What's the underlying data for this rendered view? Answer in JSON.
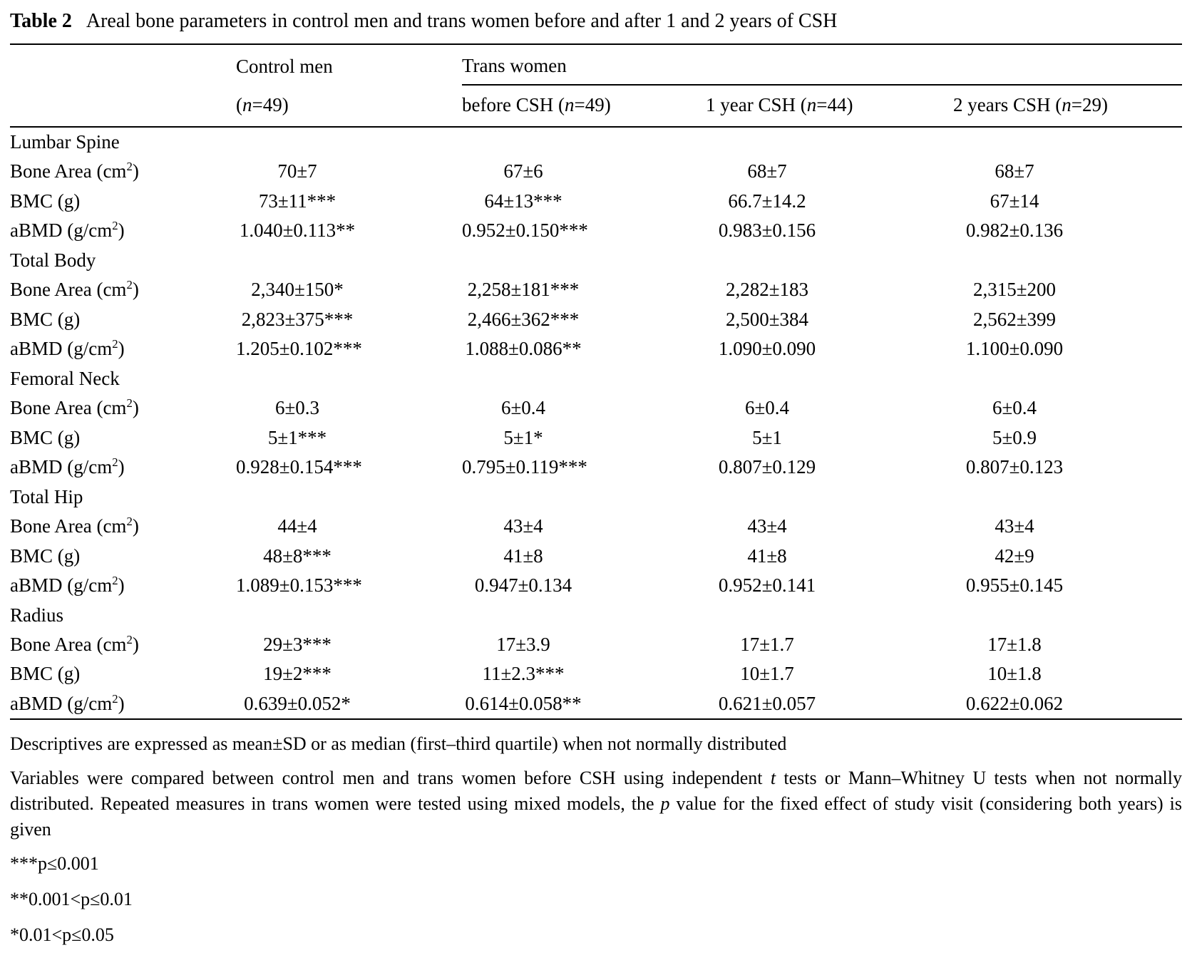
{
  "page": {
    "background": "#ffffff",
    "text_color": "#000000",
    "rule_color": "#000000"
  },
  "table": {
    "label": "Table 2",
    "caption": "Areal bone parameters in control men and trans women before and after 1 and 2 years of CSH",
    "header": {
      "control": {
        "title": "Control men",
        "sub": [
          {
            "t": "("
          },
          {
            "t": "n",
            "i": true
          },
          {
            "t": "=49)"
          }
        ]
      },
      "trans": {
        "title": "Trans women",
        "subs": [
          [
            {
              "t": "before CSH ("
            },
            {
              "t": "n",
              "i": true
            },
            {
              "t": "=49)"
            }
          ],
          [
            {
              "t": "1 year CSH ("
            },
            {
              "t": "n",
              "i": true
            },
            {
              "t": "=44)"
            }
          ],
          [
            {
              "t": "2 years CSH ("
            },
            {
              "t": "n",
              "i": true
            },
            {
              "t": "=29)"
            }
          ]
        ]
      }
    },
    "sections": [
      {
        "name": "Lumbar Spine",
        "rows": [
          {
            "label": [
              {
                "t": "Bone Area (cm"
              },
              {
                "t": "2",
                "sup": true
              },
              {
                "t": ")"
              }
            ],
            "values": [
              "70±7",
              "67±6",
              "68±7",
              "68±7"
            ]
          },
          {
            "label": [
              {
                "t": "BMC (g)"
              }
            ],
            "values": [
              "73±11***",
              "64±13***",
              "66.7±14.2",
              "67±14"
            ]
          },
          {
            "label": [
              {
                "t": "aBMD (g/cm"
              },
              {
                "t": "2",
                "sup": true
              },
              {
                "t": ")"
              }
            ],
            "values": [
              "1.040±0.113**",
              "0.952±0.150***",
              "0.983±0.156",
              "0.982±0.136"
            ]
          }
        ]
      },
      {
        "name": "Total Body",
        "rows": [
          {
            "label": [
              {
                "t": "Bone Area (cm"
              },
              {
                "t": "2",
                "sup": true
              },
              {
                "t": ")"
              }
            ],
            "values": [
              "2,340±150*",
              "2,258±181***",
              "2,282±183",
              "2,315±200"
            ]
          },
          {
            "label": [
              {
                "t": "BMC (g)"
              }
            ],
            "values": [
              "2,823±375***",
              "2,466±362***",
              "2,500±384",
              "2,562±399"
            ]
          },
          {
            "label": [
              {
                "t": "aBMD (g/cm"
              },
              {
                "t": "2",
                "sup": true
              },
              {
                "t": ")"
              }
            ],
            "values": [
              "1.205±0.102***",
              "1.088±0.086**",
              "1.090±0.090",
              "1.100±0.090"
            ]
          }
        ]
      },
      {
        "name": "Femoral Neck",
        "rows": [
          {
            "label": [
              {
                "t": "Bone Area (cm"
              },
              {
                "t": "2",
                "sup": true
              },
              {
                "t": ")"
              }
            ],
            "values": [
              "6±0.3",
              "6±0.4",
              "6±0.4",
              "6±0.4"
            ]
          },
          {
            "label": [
              {
                "t": "BMC (g)"
              }
            ],
            "values": [
              "5±1***",
              "5±1*",
              "5±1",
              "5±0.9"
            ]
          },
          {
            "label": [
              {
                "t": "aBMD (g/cm"
              },
              {
                "t": "2",
                "sup": true
              },
              {
                "t": ")"
              }
            ],
            "values": [
              "0.928±0.154***",
              "0.795±0.119***",
              "0.807±0.129",
              "0.807±0.123"
            ]
          }
        ]
      },
      {
        "name": "Total Hip",
        "rows": [
          {
            "label": [
              {
                "t": "Bone Area (cm"
              },
              {
                "t": "2",
                "sup": true
              },
              {
                "t": ")"
              }
            ],
            "values": [
              "44±4",
              "43±4",
              "43±4",
              "43±4"
            ]
          },
          {
            "label": [
              {
                "t": "BMC (g)"
              }
            ],
            "values": [
              "48±8***",
              "41±8",
              "41±8",
              "42±9"
            ]
          },
          {
            "label": [
              {
                "t": "aBMD (g/cm"
              },
              {
                "t": "2",
                "sup": true
              },
              {
                "t": ")"
              }
            ],
            "values": [
              "1.089±0.153***",
              "0.947±0.134",
              "0.952±0.141",
              "0.955±0.145"
            ]
          }
        ]
      },
      {
        "name": "Radius",
        "rows": [
          {
            "label": [
              {
                "t": "Bone Area (cm"
              },
              {
                "t": "2",
                "sup": true
              },
              {
                "t": ")"
              }
            ],
            "values": [
              "29±3***",
              "17±3.9",
              "17±1.7",
              "17±1.8"
            ]
          },
          {
            "label": [
              {
                "t": "BMC (g)"
              }
            ],
            "values": [
              "19±2***",
              "11±2.3***",
              "10±1.7",
              "10±1.8"
            ]
          },
          {
            "label": [
              {
                "t": "aBMD (g/cm"
              },
              {
                "t": "2",
                "sup": true
              },
              {
                "t": ")"
              }
            ],
            "values": [
              "0.639±0.052*",
              "0.614±0.058**",
              "0.621±0.057",
              "0.622±0.062"
            ]
          }
        ]
      }
    ]
  },
  "footnotes": {
    "fn1": [
      {
        "t": "Descriptives are expressed as mean±SD or as median (first–third quartile) when not normally distributed"
      }
    ],
    "fn2": [
      {
        "t": "Variables were compared between control men and trans women before CSH using independent "
      },
      {
        "t": "t",
        "i": true
      },
      {
        "t": " tests or Mann–Whitney U tests when not normally distributed. Repeated measures in trans women were tested using mixed models, the "
      },
      {
        "t": "p",
        "i": true
      },
      {
        "t": " value for the fixed effect of study visit (considering both years) is given"
      }
    ],
    "fn3": [
      {
        "t": "***p≤0.001"
      }
    ],
    "fn4": [
      {
        "t": "**0.001<p≤0.01"
      }
    ],
    "fn5": [
      {
        "t": "*0.01<p≤0.05"
      }
    ]
  }
}
